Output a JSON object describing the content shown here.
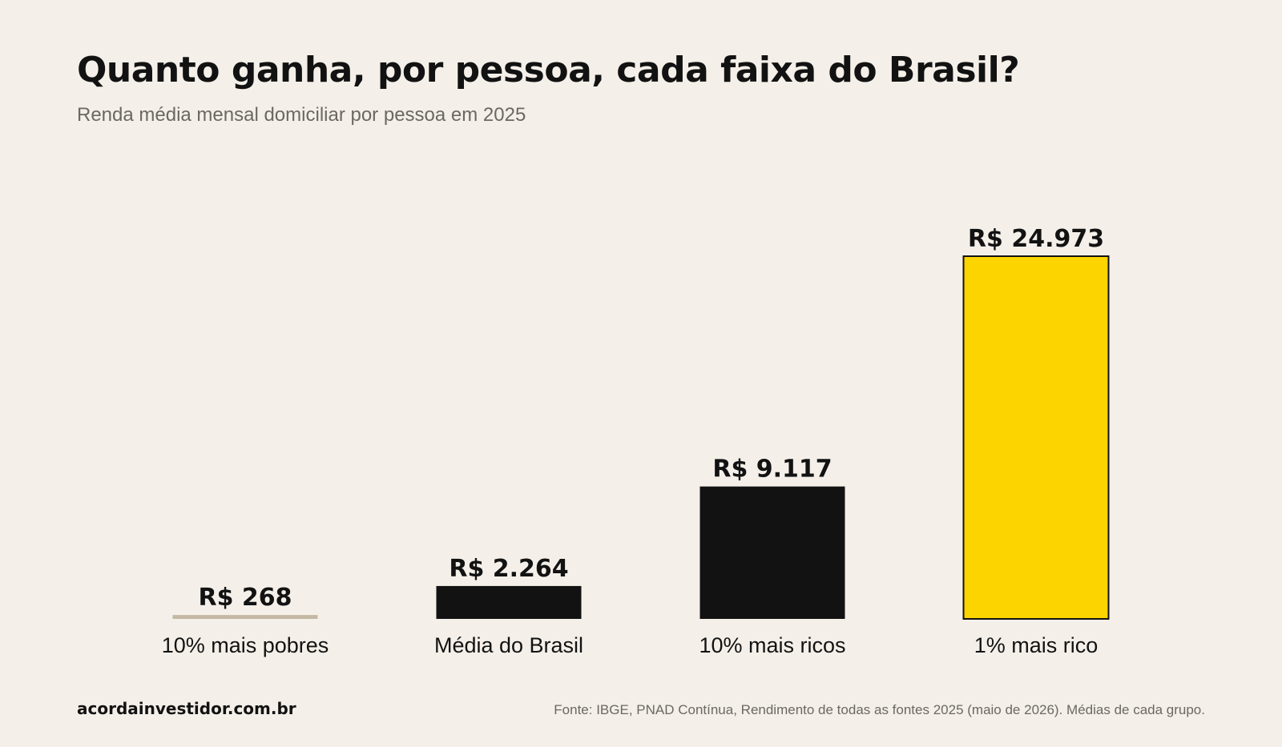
{
  "header": {
    "title": "Quanto ganha, por pessoa, cada faixa do Brasil?",
    "subtitle": "Renda média mensal domiciliar por pessoa em 2025"
  },
  "footer": {
    "brand": "acordainvestidor.com.br",
    "source": "Fonte: IBGE, PNAD Contínua, Rendimento de todas as fontes 2025 (maio de 2026). Médias de cada grupo."
  },
  "colors": {
    "background": "#f4f0e9",
    "text": "#121212",
    "muted": "#6b6862",
    "poorest_bar": "#c4b8a4",
    "default_bar": "#121212",
    "highlight_bar": "#fcd400"
  },
  "chart_data": {
    "type": "bar",
    "title": "Quanto ganha, por pessoa, cada faixa do Brasil?",
    "subtitle": "Renda média mensal domiciliar por pessoa em 2025",
    "categories": [
      "10% mais pobres",
      "Média do Brasil",
      "10% mais ricos",
      "1% mais rico"
    ],
    "values": [
      268,
      2264,
      9117,
      24973
    ],
    "value_labels": [
      "R$ 268",
      "R$ 2.264",
      "R$ 9.117",
      "R$ 24.973"
    ],
    "bar_colors": [
      "#c4b8a4",
      "#121212",
      "#121212",
      "#fcd400"
    ],
    "ylim": [
      0,
      24973
    ],
    "grid": false,
    "legend": "none"
  }
}
